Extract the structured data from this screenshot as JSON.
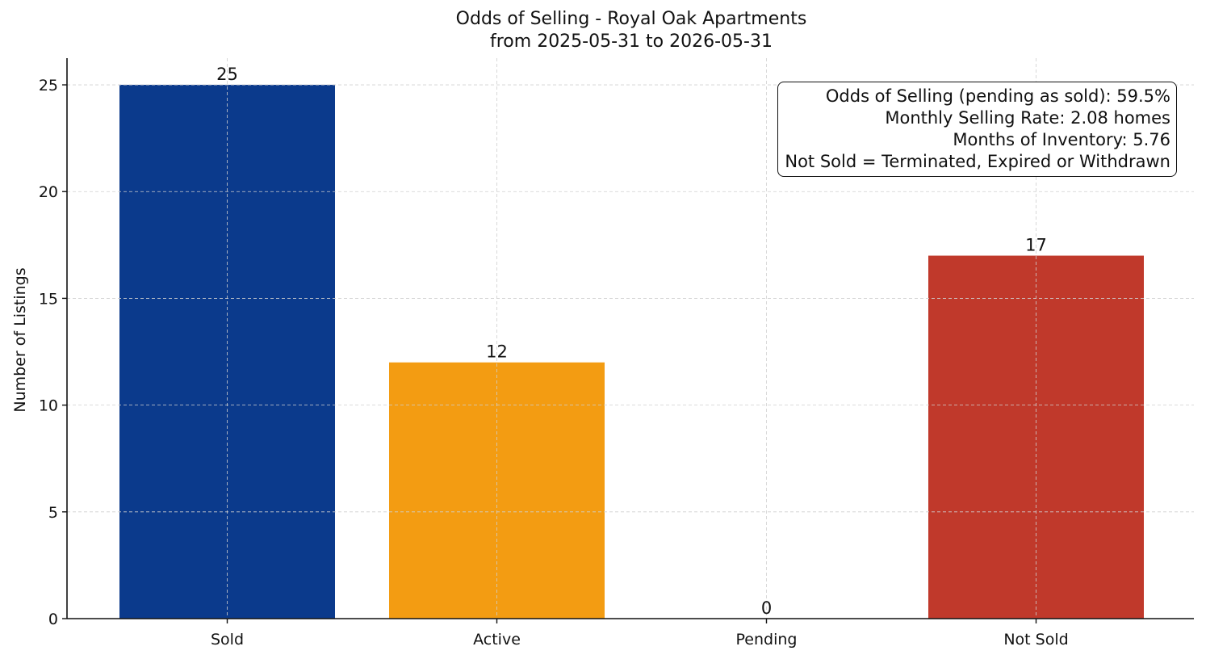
{
  "title": "Odds of Selling - Royal Oak Apartments",
  "subtitle": "from 2025-05-31 to 2026-05-31",
  "stats": [
    "Odds of Selling (pending as sold): 59.5%",
    "Monthly Selling Rate: 2.08 homes",
    "Months of Inventory: 5.76",
    "Not Sold = Terminated, Expired or Withdrawn"
  ],
  "chart_data": {
    "type": "bar",
    "categories": [
      "Sold",
      "Active",
      "Pending",
      "Not Sold"
    ],
    "values": [
      25,
      12,
      0,
      17
    ],
    "colors": [
      "#0b3a8c",
      "#f39c12",
      "#7f8c8d",
      "#c0392b"
    ],
    "data_labels": [
      "25",
      "12",
      "0",
      "17"
    ],
    "ylabel": "Number of Listings",
    "ylim": [
      0,
      26.25
    ],
    "yticks": [
      0,
      5,
      10,
      15,
      20,
      25
    ],
    "grid": true
  }
}
